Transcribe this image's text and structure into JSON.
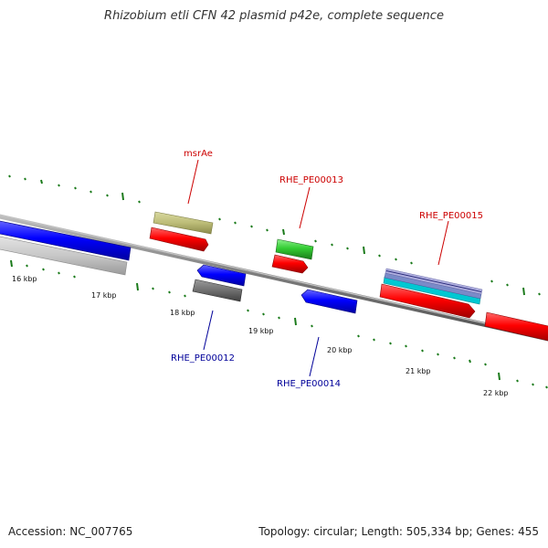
{
  "title": "Rhizobium etli CFN 42 plasmid p42e, complete sequence",
  "footer": {
    "accession": "Accession: NC_007765",
    "summary": "Topology: circular; Length: 505,334 bp; Genes: 455"
  },
  "colors": {
    "forward_label": "#cc0000",
    "reverse_label": "#000099",
    "tick": "#1a7a1a",
    "backbone": "#808080"
  },
  "map": {
    "scale_labels": [
      "16 kbp",
      "17 kbp",
      "18 kbp",
      "19 kbp",
      "20 kbp",
      "21 kbp",
      "22 kbp"
    ],
    "gene_labels": {
      "msrAe": "msrAe",
      "rhe13": "RHE_PE00013",
      "rhe15": "RHE_PE00015",
      "rhe12": "RHE_PE00012",
      "rhe14": "RHE_PE00014"
    }
  }
}
